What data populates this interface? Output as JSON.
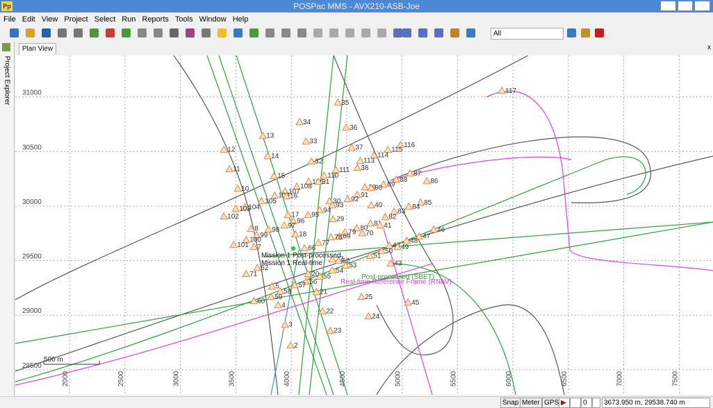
{
  "window": {
    "icon": "Pp",
    "title": "POSPac MMS - AVX210-ASB-Joe"
  },
  "menu": [
    "File",
    "Edit",
    "View",
    "Project",
    "Select",
    "Run",
    "Reports",
    "Tools",
    "Window",
    "Help"
  ],
  "toolbar": {
    "filter": "All"
  },
  "sidebar": {
    "label": "Project Explorer"
  },
  "tab": "Plan View",
  "chart_data": {
    "type": "scatter",
    "xlim": [
      1510,
      7805
    ],
    "ylim": [
      28270,
      31380
    ],
    "xticks": [
      2000,
      2500,
      3000,
      3500,
      4000,
      4500,
      5000,
      5500,
      6000,
      6500,
      7000,
      7500
    ],
    "yticks": [
      28500,
      29000,
      29500,
      30000,
      30500,
      31000
    ],
    "grid": true,
    "color": "#e8873a",
    "point_labels": [
      "117",
      "35",
      "36",
      "34",
      "13",
      "33",
      "12",
      "37",
      "116",
      "115",
      "114",
      "113",
      "14",
      "32",
      "38",
      "111",
      "11",
      "110",
      "15",
      "106",
      "31",
      "87",
      "88",
      "89",
      "86",
      "108",
      "10",
      "107",
      "39",
      "90",
      "91",
      "109",
      "16",
      "30",
      "92",
      "105",
      "85",
      "40",
      "84",
      "104",
      "103",
      "93",
      "94",
      "83",
      "102",
      "95",
      "17",
      "82",
      "29",
      "96",
      "81",
      "41",
      "97",
      "8",
      "98",
      "99",
      "80",
      "79",
      "18",
      "70",
      "46",
      "69",
      "78",
      "47",
      "48",
      "100",
      "77",
      "101",
      "7",
      "66",
      "42",
      "49",
      "50",
      "51",
      "27",
      "52",
      "43",
      "53",
      "54",
      "71",
      "20",
      "55",
      "56",
      "5",
      "57",
      "58",
      "21",
      "59",
      "25",
      "60",
      "45",
      "4",
      "22",
      "24",
      "3",
      "23",
      "2",
      "62"
    ],
    "x": [
      5900,
      4420,
      4495,
      4075,
      3743,
      4132,
      3392,
      4546,
      4985,
      4872,
      4746,
      4621,
      3787,
      4182,
      4596,
      4401,
      3442,
      4295,
      3843,
      4157,
      4245,
      5072,
      4947,
      4834,
      5223,
      4050,
      3517,
      3944,
      4665,
      4721,
      4596,
      3850,
      3956,
      4345,
      4508,
      3731,
      5166,
      4721,
      5060,
      3580,
      3499,
      4370,
      4257,
      4928,
      3392,
      4151,
      3969,
      4847,
      4376,
      4019,
      4715,
      4803,
      3937,
      3636,
      3793,
      3687,
      4590,
      4483,
      4038,
      4640,
      5285,
      4433,
      4358,
      5154,
      5041,
      3593,
      4245,
      3480,
      3662,
      4119,
      4884,
      4959,
      4815,
      4709,
      4370,
      4426,
      4897,
      4489,
      4370,
      3593,
      4151,
      4257,
      4132,
      3825,
      4031,
      3900,
      4226,
      3818,
      4633,
      3662,
      5053,
      3881,
      4282,
      4696,
      3944,
      4351,
      3994,
      3693
    ],
    "values": [
      31057,
      30949,
      30720,
      30771,
      30644,
      30593,
      30517,
      30536,
      30561,
      30517,
      30466,
      30415,
      30459,
      30409,
      30351,
      30332,
      30339,
      30281,
      30275,
      30224,
      30224,
      30300,
      30243,
      30199,
      30230,
      30180,
      30160,
      30135,
      30173,
      30167,
      30103,
      30097,
      30091,
      30046,
      30065,
      30046,
      30033,
      30008,
      29995,
      29989,
      29976,
      30008,
      29963,
      29951,
      29906,
      29919,
      29919,
      29900,
      29881,
      29862,
      29842,
      29823,
      29823,
      29792,
      29785,
      29734,
      29798,
      29760,
      29741,
      29753,
      29785,
      29722,
      29715,
      29722,
      29683,
      29690,
      29664,
      29645,
      29626,
      29614,
      29639,
      29626,
      29588,
      29544,
      29512,
      29499,
      29474,
      29455,
      29410,
      29378,
      29378,
      29353,
      29308,
      29264,
      29276,
      29219,
      29213,
      29168,
      29168,
      29130,
      29117,
      29092,
      29035,
      28990,
      28914,
      28857,
      28723,
      29435
    ],
    "annotations": [
      {
        "text": "Mission 1 Post-processed",
        "color": "#111111"
      },
      {
        "text": "Mission 1 Real-time",
        "color": "#111111"
      },
      {
        "text": "Post-processed (SBET)",
        "color": "#2e9e3e"
      },
      {
        "text": "Real-time Reference Frame (RNAV)",
        "color": "#e040e0"
      }
    ],
    "scale_bar": "500 m"
  },
  "status": {
    "items": [
      "Snap",
      "Meter",
      "GPS"
    ],
    "field": "0",
    "coords": "3673.950 m, 29538.740 m"
  }
}
